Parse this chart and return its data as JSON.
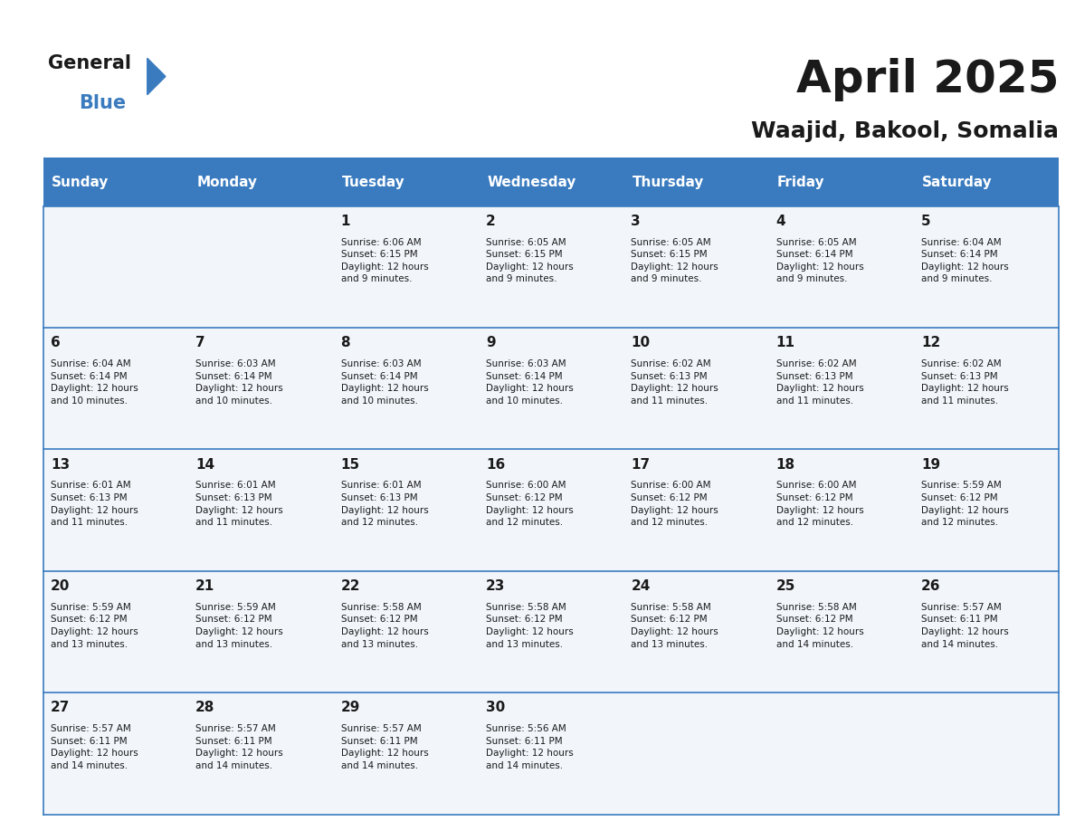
{
  "title": "April 2025",
  "subtitle": "Waajid, Bakool, Somalia",
  "header_color": "#3a7bbf",
  "header_text_color": "#ffffff",
  "cell_bg_color": "#f0f4f8",
  "border_color": "#3a7bbf",
  "days_of_week": [
    "Sunday",
    "Monday",
    "Tuesday",
    "Wednesday",
    "Thursday",
    "Friday",
    "Saturday"
  ],
  "calendar_data": [
    [
      {
        "day": "",
        "sunrise": "",
        "sunset": "",
        "daylight": ""
      },
      {
        "day": "",
        "sunrise": "",
        "sunset": "",
        "daylight": ""
      },
      {
        "day": "1",
        "sunrise": "Sunrise: 6:06 AM",
        "sunset": "Sunset: 6:15 PM",
        "daylight": "Daylight: 12 hours\nand 9 minutes."
      },
      {
        "day": "2",
        "sunrise": "Sunrise: 6:05 AM",
        "sunset": "Sunset: 6:15 PM",
        "daylight": "Daylight: 12 hours\nand 9 minutes."
      },
      {
        "day": "3",
        "sunrise": "Sunrise: 6:05 AM",
        "sunset": "Sunset: 6:15 PM",
        "daylight": "Daylight: 12 hours\nand 9 minutes."
      },
      {
        "day": "4",
        "sunrise": "Sunrise: 6:05 AM",
        "sunset": "Sunset: 6:14 PM",
        "daylight": "Daylight: 12 hours\nand 9 minutes."
      },
      {
        "day": "5",
        "sunrise": "Sunrise: 6:04 AM",
        "sunset": "Sunset: 6:14 PM",
        "daylight": "Daylight: 12 hours\nand 9 minutes."
      }
    ],
    [
      {
        "day": "6",
        "sunrise": "Sunrise: 6:04 AM",
        "sunset": "Sunset: 6:14 PM",
        "daylight": "Daylight: 12 hours\nand 10 minutes."
      },
      {
        "day": "7",
        "sunrise": "Sunrise: 6:03 AM",
        "sunset": "Sunset: 6:14 PM",
        "daylight": "Daylight: 12 hours\nand 10 minutes."
      },
      {
        "day": "8",
        "sunrise": "Sunrise: 6:03 AM",
        "sunset": "Sunset: 6:14 PM",
        "daylight": "Daylight: 12 hours\nand 10 minutes."
      },
      {
        "day": "9",
        "sunrise": "Sunrise: 6:03 AM",
        "sunset": "Sunset: 6:14 PM",
        "daylight": "Daylight: 12 hours\nand 10 minutes."
      },
      {
        "day": "10",
        "sunrise": "Sunrise: 6:02 AM",
        "sunset": "Sunset: 6:13 PM",
        "daylight": "Daylight: 12 hours\nand 11 minutes."
      },
      {
        "day": "11",
        "sunrise": "Sunrise: 6:02 AM",
        "sunset": "Sunset: 6:13 PM",
        "daylight": "Daylight: 12 hours\nand 11 minutes."
      },
      {
        "day": "12",
        "sunrise": "Sunrise: 6:02 AM",
        "sunset": "Sunset: 6:13 PM",
        "daylight": "Daylight: 12 hours\nand 11 minutes."
      }
    ],
    [
      {
        "day": "13",
        "sunrise": "Sunrise: 6:01 AM",
        "sunset": "Sunset: 6:13 PM",
        "daylight": "Daylight: 12 hours\nand 11 minutes."
      },
      {
        "day": "14",
        "sunrise": "Sunrise: 6:01 AM",
        "sunset": "Sunset: 6:13 PM",
        "daylight": "Daylight: 12 hours\nand 11 minutes."
      },
      {
        "day": "15",
        "sunrise": "Sunrise: 6:01 AM",
        "sunset": "Sunset: 6:13 PM",
        "daylight": "Daylight: 12 hours\nand 12 minutes."
      },
      {
        "day": "16",
        "sunrise": "Sunrise: 6:00 AM",
        "sunset": "Sunset: 6:12 PM",
        "daylight": "Daylight: 12 hours\nand 12 minutes."
      },
      {
        "day": "17",
        "sunrise": "Sunrise: 6:00 AM",
        "sunset": "Sunset: 6:12 PM",
        "daylight": "Daylight: 12 hours\nand 12 minutes."
      },
      {
        "day": "18",
        "sunrise": "Sunrise: 6:00 AM",
        "sunset": "Sunset: 6:12 PM",
        "daylight": "Daylight: 12 hours\nand 12 minutes."
      },
      {
        "day": "19",
        "sunrise": "Sunrise: 5:59 AM",
        "sunset": "Sunset: 6:12 PM",
        "daylight": "Daylight: 12 hours\nand 12 minutes."
      }
    ],
    [
      {
        "day": "20",
        "sunrise": "Sunrise: 5:59 AM",
        "sunset": "Sunset: 6:12 PM",
        "daylight": "Daylight: 12 hours\nand 13 minutes."
      },
      {
        "day": "21",
        "sunrise": "Sunrise: 5:59 AM",
        "sunset": "Sunset: 6:12 PM",
        "daylight": "Daylight: 12 hours\nand 13 minutes."
      },
      {
        "day": "22",
        "sunrise": "Sunrise: 5:58 AM",
        "sunset": "Sunset: 6:12 PM",
        "daylight": "Daylight: 12 hours\nand 13 minutes."
      },
      {
        "day": "23",
        "sunrise": "Sunrise: 5:58 AM",
        "sunset": "Sunset: 6:12 PM",
        "daylight": "Daylight: 12 hours\nand 13 minutes."
      },
      {
        "day": "24",
        "sunrise": "Sunrise: 5:58 AM",
        "sunset": "Sunset: 6:12 PM",
        "daylight": "Daylight: 12 hours\nand 13 minutes."
      },
      {
        "day": "25",
        "sunrise": "Sunrise: 5:58 AM",
        "sunset": "Sunset: 6:12 PM",
        "daylight": "Daylight: 12 hours\nand 14 minutes."
      },
      {
        "day": "26",
        "sunrise": "Sunrise: 5:57 AM",
        "sunset": "Sunset: 6:11 PM",
        "daylight": "Daylight: 12 hours\nand 14 minutes."
      }
    ],
    [
      {
        "day": "27",
        "sunrise": "Sunrise: 5:57 AM",
        "sunset": "Sunset: 6:11 PM",
        "daylight": "Daylight: 12 hours\nand 14 minutes."
      },
      {
        "day": "28",
        "sunrise": "Sunrise: 5:57 AM",
        "sunset": "Sunset: 6:11 PM",
        "daylight": "Daylight: 12 hours\nand 14 minutes."
      },
      {
        "day": "29",
        "sunrise": "Sunrise: 5:57 AM",
        "sunset": "Sunset: 6:11 PM",
        "daylight": "Daylight: 12 hours\nand 14 minutes."
      },
      {
        "day": "30",
        "sunrise": "Sunrise: 5:56 AM",
        "sunset": "Sunset: 6:11 PM",
        "daylight": "Daylight: 12 hours\nand 14 minutes."
      },
      {
        "day": "",
        "sunrise": "",
        "sunset": "",
        "daylight": ""
      },
      {
        "day": "",
        "sunrise": "",
        "sunset": "",
        "daylight": ""
      },
      {
        "day": "",
        "sunrise": "",
        "sunset": "",
        "daylight": ""
      }
    ]
  ]
}
